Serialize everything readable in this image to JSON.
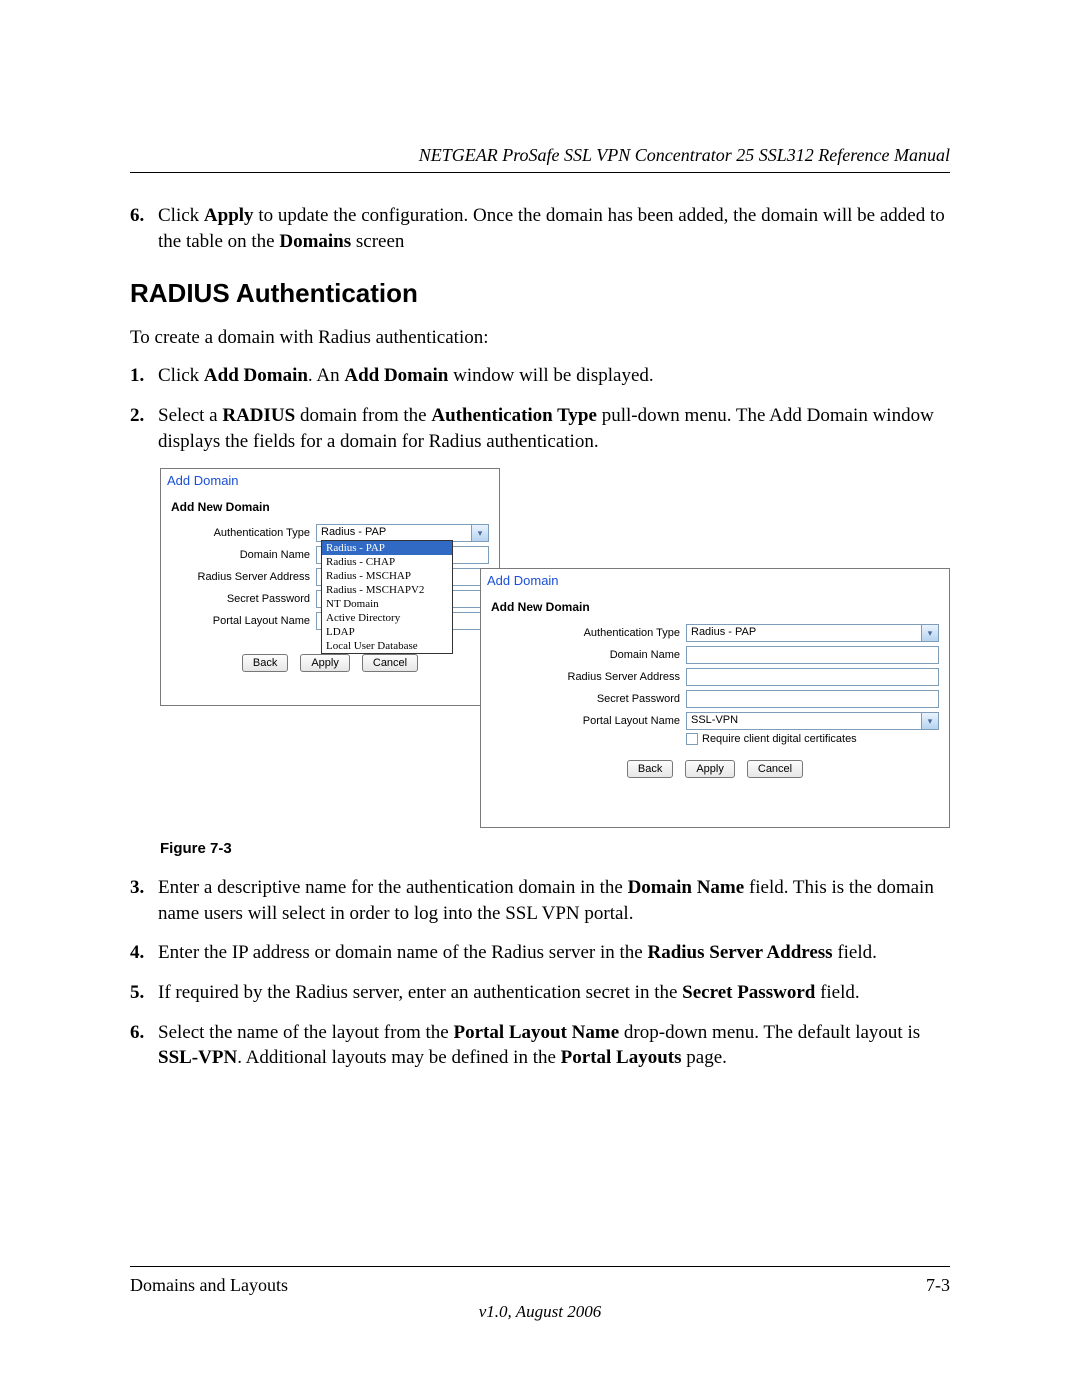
{
  "header": "NETGEAR ProSafe SSL VPN Concentrator 25 SSL312 Reference Manual",
  "step6_top": {
    "num": "6.",
    "t1": "Click ",
    "b1": "Apply",
    "t2": " to update the configuration. Once the domain has been added, the domain will be added to the table on the ",
    "b2": "Domains",
    "t3": " screen"
  },
  "h2": "RADIUS Authentication",
  "intro": "To create a domain with Radius authentication:",
  "step1": {
    "num": "1.",
    "t1": "Click ",
    "b1": "Add Domain",
    "t2": ". An ",
    "b2": "Add Domain",
    "t3": " window will be displayed."
  },
  "step2": {
    "num": "2.",
    "t1": "Select a ",
    "b1": "RADIUS",
    "t2": " domain from the ",
    "b2": "Authentication Type",
    "t3": " pull-down menu. The Add Domain window displays the fields for a domain for Radius authentication."
  },
  "dialog": {
    "title": "Add Domain",
    "sub": "Add New Domain",
    "labels": {
      "auth": "Authentication Type",
      "domain": "Domain Name",
      "radius": "Radius Server Address",
      "secret": "Secret Password",
      "portal": "Portal Layout Name"
    },
    "auth_value": "Radius - PAP",
    "portal_value": "SSL-VPN",
    "chk_label": "Require client digital certificates",
    "cutoff": "Require client digital certificate",
    "buttons": {
      "back": "Back",
      "apply": "Apply",
      "cancel": "Cancel"
    },
    "options": [
      "Radius - PAP",
      "Radius - CHAP",
      "Radius - MSCHAP",
      "Radius - MSCHAPV2",
      "NT Domain",
      "Active Directory",
      "LDAP",
      "Local User Database"
    ]
  },
  "fig_caption": "Figure 7-3",
  "step3": {
    "num": "3.",
    "t1": "Enter a descriptive name for the authentication domain in the ",
    "b1": "Domain Name",
    "t2": " field. This is the domain name users will select in order to log into the SSL VPN portal."
  },
  "step4": {
    "num": "4.",
    "t1": "Enter the IP address or domain name of the Radius server in the ",
    "b1": "Radius Server Address",
    "t2": " field."
  },
  "step5": {
    "num": "5.",
    "t1": "If required by the Radius server, enter an authentication secret in the ",
    "b1": "Secret Password",
    "t2": " field."
  },
  "step6": {
    "num": "6.",
    "t1": "Select the name of the layout from the ",
    "b1": "Portal Layout Name",
    "t2": " drop-down menu. The default layout is ",
    "b2": "SSL-VPN",
    "t3": ". Additional layouts may be defined in the ",
    "b3": "Portal Layouts",
    "t4": " page."
  },
  "footer": {
    "left": "Domains and Layouts",
    "right": "7-3",
    "ver": "v1.0, August 2006"
  }
}
